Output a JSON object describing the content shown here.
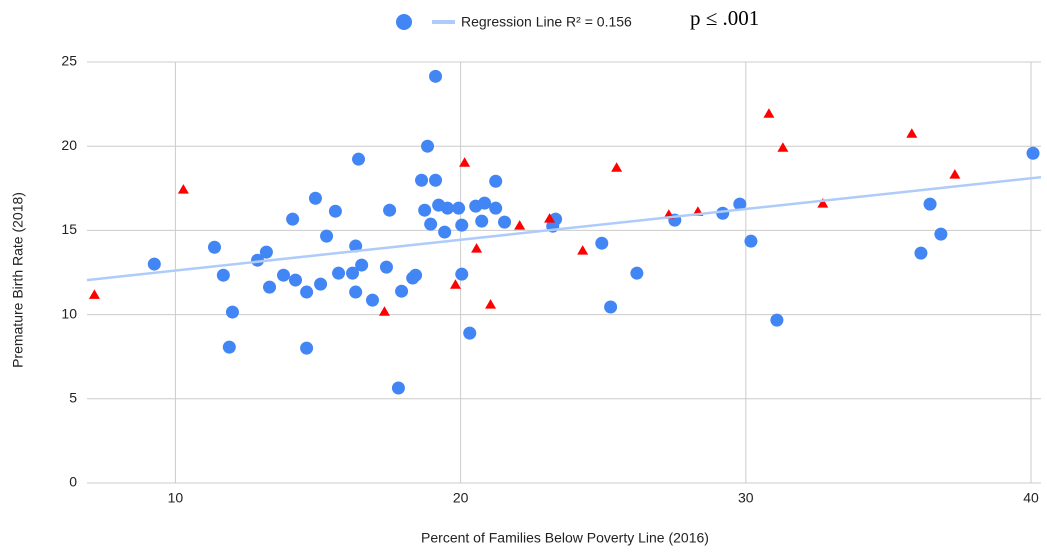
{
  "chart_data": {
    "type": "scatter",
    "x_label": "Percent of Families Below Poverty Line (2016)",
    "y_label": "Premature Birth Rate (2018)",
    "annotation": "p ≤ .001",
    "xlim": [
      6.9,
      40.35
    ],
    "ylim": [
      0,
      25
    ],
    "xticks": [
      10,
      20,
      30,
      40
    ],
    "yticks": [
      0,
      5,
      10,
      15,
      20,
      25
    ],
    "grid": true,
    "series": [
      {
        "color": "#4285f4",
        "marker": "circle",
        "x": [
          9.26,
          11.37,
          11.68,
          12.0,
          11.89,
          12.88,
          13.19,
          13.3,
          13.79,
          14.11,
          14.21,
          14.6,
          14.6,
          14.91,
          15.09,
          15.3,
          15.61,
          15.72,
          16.21,
          16.32,
          16.32,
          16.42,
          16.53,
          16.91,
          17.4,
          17.51,
          17.82,
          17.93,
          18.32,
          18.42,
          18.63,
          18.74,
          18.84,
          18.95,
          19.12,
          19.12,
          19.23,
          19.44,
          19.54,
          19.93,
          20.04,
          20.04,
          20.32,
          20.53,
          20.74,
          20.84,
          21.23,
          21.23,
          21.54,
          23.23,
          23.33,
          24.95,
          25.26,
          26.18,
          27.51,
          29.19,
          29.79,
          30.18,
          31.09,
          36.14,
          36.46,
          36.84,
          40.07
        ],
        "values": [
          13.0,
          14.0,
          12.34,
          10.15,
          8.07,
          13.23,
          13.71,
          11.63,
          12.34,
          15.67,
          12.05,
          11.34,
          8.01,
          16.91,
          11.81,
          14.66,
          16.14,
          12.46,
          12.46,
          14.07,
          11.34,
          19.23,
          12.94,
          10.86,
          12.82,
          16.2,
          5.64,
          11.39,
          12.17,
          12.34,
          17.98,
          16.2,
          20.0,
          15.37,
          24.15,
          17.98,
          16.5,
          14.9,
          16.32,
          16.32,
          15.31,
          12.4,
          8.9,
          16.44,
          15.55,
          16.62,
          17.92,
          16.32,
          15.49,
          15.25,
          15.67,
          14.24,
          10.45,
          12.46,
          15.61,
          16.02,
          16.56,
          14.36,
          9.67,
          13.65,
          16.56,
          14.78,
          19.58
        ]
      },
      {
        "color": "#ff0000",
        "marker": "triangle",
        "x": [
          7.16,
          10.28,
          17.33,
          19.82,
          20.14,
          20.56,
          21.05,
          22.07,
          23.12,
          24.28,
          25.47,
          27.3,
          28.32,
          30.81,
          31.3,
          32.7,
          35.82,
          37.33
        ],
        "values": [
          11.2,
          17.45,
          10.2,
          11.8,
          19.05,
          13.95,
          10.62,
          15.31,
          15.73,
          13.83,
          18.75,
          15.96,
          16.14,
          21.96,
          19.94,
          16.62,
          20.77,
          18.34
        ]
      },
      {
        "name": "Regression Line R² = 0.156",
        "color": "#aecbfa",
        "marker": "line",
        "x": [
          6.9,
          40.35
        ],
        "values": [
          12.05,
          18.16
        ]
      }
    ]
  }
}
